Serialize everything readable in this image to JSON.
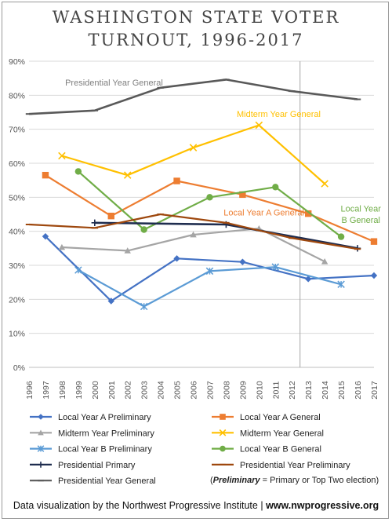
{
  "chart_data": {
    "type": "line",
    "title_line1": "WASHINGTON STATE VOTER",
    "title_line2": "TURNOUT, 1996-2017",
    "xlabel": "",
    "ylabel": "",
    "ylim": [
      0,
      90
    ],
    "yticks": [
      "0%",
      "10%",
      "20%",
      "30%",
      "40%",
      "50%",
      "60%",
      "70%",
      "80%",
      "90%"
    ],
    "x": [
      1996,
      1997,
      1998,
      1999,
      2000,
      2001,
      2002,
      2003,
      2004,
      2005,
      2006,
      2007,
      2008,
      2009,
      2010,
      2011,
      2012,
      2013,
      2014,
      2015,
      2016,
      2017
    ],
    "x_labels": [
      "1996",
      "1997",
      "1998",
      "1999",
      "2000",
      "2001",
      "2002",
      "2003",
      "2004",
      "2005",
      "2006",
      "2007",
      "2008",
      "2009",
      "2010",
      "2011",
      "2012",
      "2013",
      "2014",
      "2015",
      "2016",
      "2017"
    ],
    "grid": "horizontal",
    "vertical_marker_x": 2012.5,
    "legend_position": "bottom",
    "series": [
      {
        "name": "Local Year A Preliminary",
        "color": "#4472c4",
        "marker": "diamond",
        "points": [
          [
            1997,
            38.5
          ],
          [
            2001,
            19.5
          ],
          [
            2005,
            32
          ],
          [
            2009,
            31
          ],
          [
            2013,
            26
          ],
          [
            2017,
            27
          ]
        ]
      },
      {
        "name": "Local Year A General",
        "color": "#ed7d31",
        "marker": "square",
        "points": [
          [
            1997,
            56.5
          ],
          [
            2001,
            44.5
          ],
          [
            2005,
            54.8
          ],
          [
            2009,
            50.8
          ],
          [
            2013,
            45.2
          ],
          [
            2017,
            37
          ]
        ]
      },
      {
        "name": "Midterm Year Preliminary",
        "color": "#a5a5a5",
        "marker": "triangle",
        "points": [
          [
            1998,
            35.3
          ],
          [
            2002,
            34.3
          ],
          [
            2006,
            39
          ],
          [
            2010,
            40.8
          ],
          [
            2014,
            31.1
          ]
        ]
      },
      {
        "name": "Midterm Year General",
        "color": "#ffc000",
        "marker": "x",
        "points": [
          [
            1998,
            62.2
          ],
          [
            2002,
            56.5
          ],
          [
            2006,
            64.6
          ],
          [
            2010,
            71.2
          ],
          [
            2014,
            54
          ]
        ]
      },
      {
        "name": "Local Year B Preliminary",
        "color": "#5b9bd5",
        "marker": "asterisk",
        "points": [
          [
            1999,
            28.6
          ],
          [
            2003,
            17.9
          ],
          [
            2007,
            28.3
          ],
          [
            2011,
            29.5
          ],
          [
            2015,
            24.4
          ]
        ]
      },
      {
        "name": "Local Year B General",
        "color": "#70ad47",
        "marker": "circle",
        "points": [
          [
            1999,
            57.6
          ],
          [
            2003,
            40.5
          ],
          [
            2007,
            50
          ],
          [
            2011,
            53
          ],
          [
            2015,
            38.4
          ]
        ]
      },
      {
        "name": "Presidential Primary",
        "color": "#1f2d4f",
        "marker": "plus",
        "points": [
          [
            2000,
            42.5
          ],
          [
            2008,
            42
          ],
          [
            2016,
            35
          ]
        ]
      },
      {
        "name": "Presidential Year Preliminary",
        "color": "#9e480e",
        "marker": "dash",
        "points": [
          [
            1996,
            42
          ],
          [
            2000,
            41
          ],
          [
            2004,
            45
          ],
          [
            2008,
            42.5
          ],
          [
            2012,
            38
          ],
          [
            2016,
            34.8
          ]
        ]
      },
      {
        "name": "Presidential Year General",
        "color": "#595959",
        "marker": "dash",
        "points": [
          [
            1996,
            74.5
          ],
          [
            2000,
            75.5
          ],
          [
            2004,
            82.2
          ],
          [
            2008,
            84.6
          ],
          [
            2012,
            81.2
          ],
          [
            2016,
            78.8
          ]
        ]
      }
    ],
    "annotations": [
      {
        "text": "Presidential Year General",
        "color": "#7f7f7f"
      },
      {
        "text": "Midterm Year General",
        "color": "#ffc000"
      },
      {
        "text": "Local Year A General",
        "color": "#ed7d31"
      },
      {
        "text": "Local Year",
        "color": "#70ad47"
      },
      {
        "text": "B General",
        "color": "#70ad47"
      }
    ],
    "legend_note": {
      "open": "(",
      "emph": "Preliminary",
      "rest": " = Primary or Top Two election)"
    }
  },
  "footer": {
    "credit": "Data visualization by the Northwest Progressive Institute | ",
    "site": "www.nwprogressive.org"
  }
}
